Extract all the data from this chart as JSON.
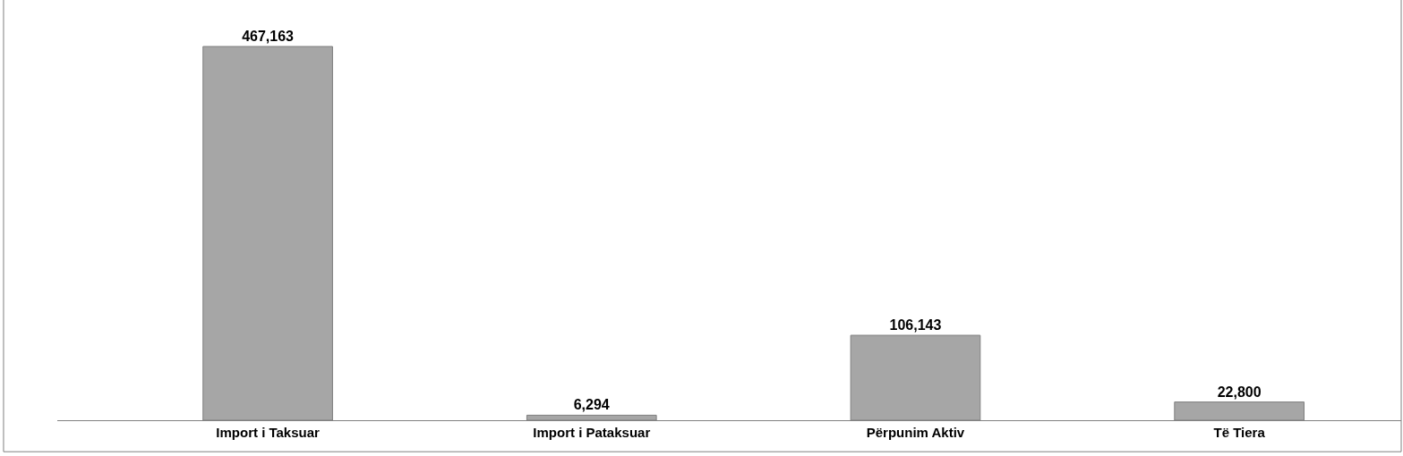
{
  "chart_data": {
    "type": "bar",
    "categories": [
      "Import i Taksuar",
      "Import i Pataksuar",
      "Përpunim Aktiv",
      "Të Tiera"
    ],
    "values": [
      467163,
      6294,
      106143,
      22800
    ],
    "value_labels": [
      "467,163",
      "6,294",
      "106,143",
      "22,800"
    ],
    "color": "#a6a6a6",
    "tick_labels": "x"
  }
}
